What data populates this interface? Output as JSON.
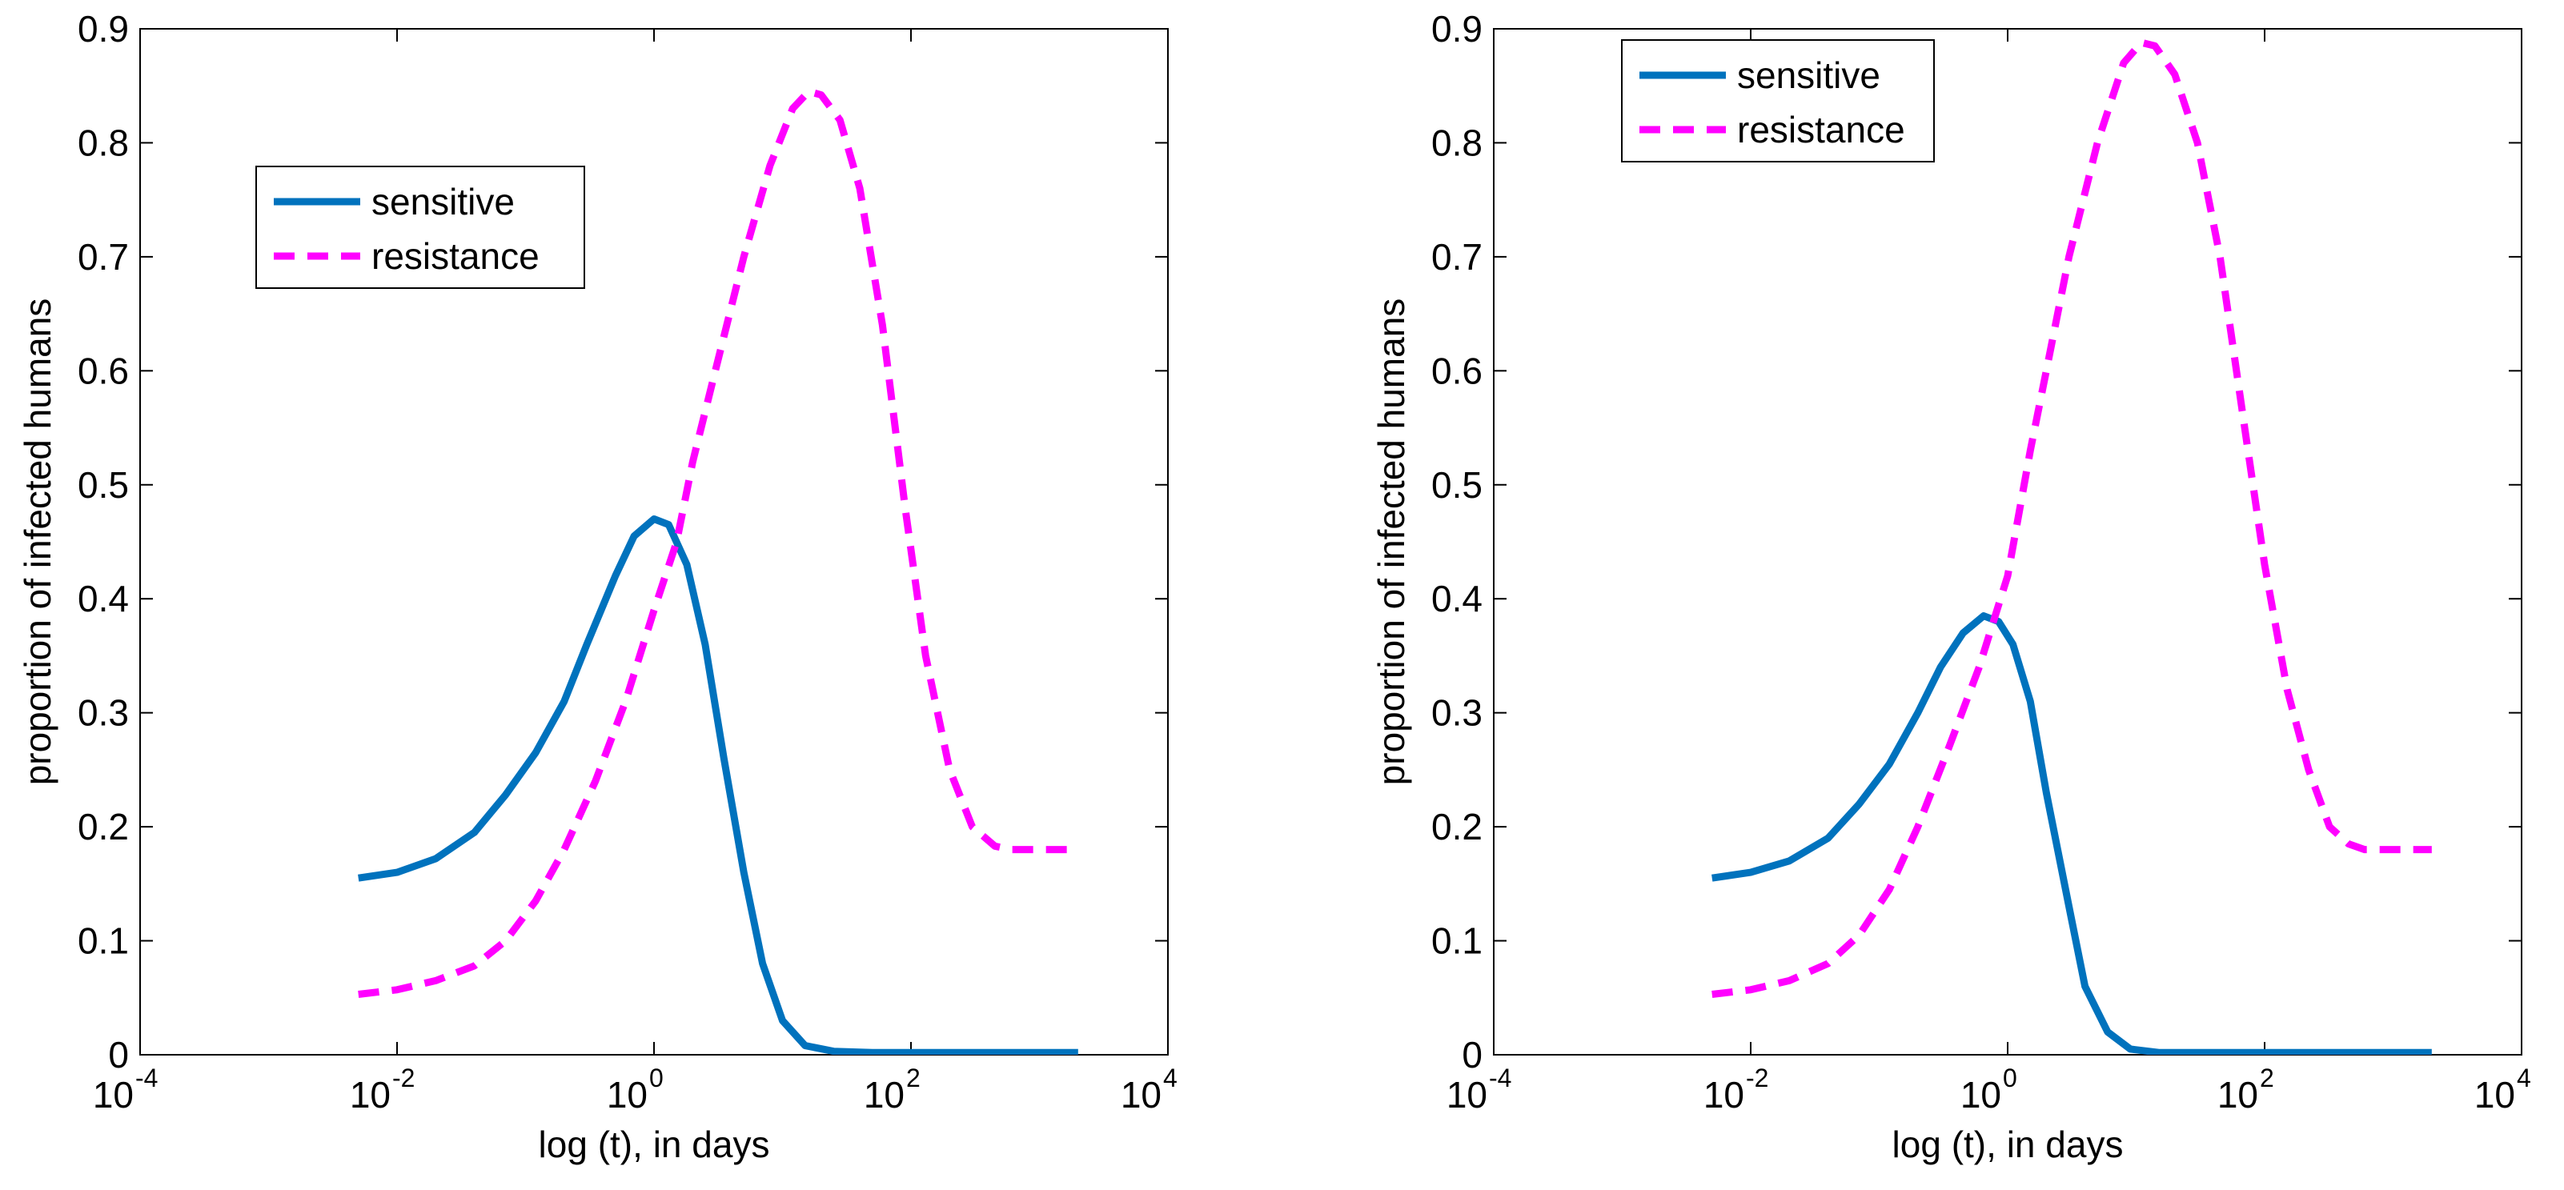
{
  "chart_data": [
    {
      "type": "line",
      "x_scale": "log",
      "xlabel": "log (t), in days",
      "ylabel": "proportion of infected humans",
      "xlim": [
        0.0001,
        10000
      ],
      "ylim": [
        0,
        0.9
      ],
      "x_ticks": [
        {
          "base": "10",
          "exp": "-4"
        },
        {
          "base": "10",
          "exp": "-2"
        },
        {
          "base": "10",
          "exp": "0"
        },
        {
          "base": "10",
          "exp": "2"
        },
        {
          "base": "10",
          "exp": "4"
        }
      ],
      "y_ticks": [
        "0",
        "0.1",
        "0.2",
        "0.3",
        "0.4",
        "0.5",
        "0.6",
        "0.7",
        "0.8",
        "0.9"
      ],
      "legend_position": "upper-left",
      "series": [
        {
          "name": "sensitive",
          "color": "#0072BD",
          "style": "solid",
          "points": [
            [
              0.005,
              0.155
            ],
            [
              0.01,
              0.16
            ],
            [
              0.02,
              0.172
            ],
            [
              0.04,
              0.195
            ],
            [
              0.07,
              0.228
            ],
            [
              0.12,
              0.265
            ],
            [
              0.2,
              0.31
            ],
            [
              0.3,
              0.36
            ],
            [
              0.5,
              0.42
            ],
            [
              0.7,
              0.455
            ],
            [
              1.0,
              0.47
            ],
            [
              1.3,
              0.465
            ],
            [
              1.8,
              0.43
            ],
            [
              2.5,
              0.36
            ],
            [
              3.5,
              0.26
            ],
            [
              5,
              0.16
            ],
            [
              7,
              0.08
            ],
            [
              10,
              0.03
            ],
            [
              15,
              0.008
            ],
            [
              25,
              0.003
            ],
            [
              50,
              0.002
            ],
            [
              100,
              0.002
            ],
            [
              2000,
              0.002
            ]
          ]
        },
        {
          "name": "resistance",
          "color": "#FF00FF",
          "style": "dashed",
          "points": [
            [
              0.005,
              0.053
            ],
            [
              0.01,
              0.057
            ],
            [
              0.02,
              0.065
            ],
            [
              0.04,
              0.078
            ],
            [
              0.07,
              0.1
            ],
            [
              0.12,
              0.135
            ],
            [
              0.2,
              0.18
            ],
            [
              0.35,
              0.24
            ],
            [
              0.6,
              0.31
            ],
            [
              1,
              0.39
            ],
            [
              1.5,
              0.45
            ],
            [
              2,
              0.52
            ],
            [
              3,
              0.6
            ],
            [
              5,
              0.7
            ],
            [
              8,
              0.78
            ],
            [
              12,
              0.83
            ],
            [
              16,
              0.845
            ],
            [
              20,
              0.842
            ],
            [
              28,
              0.82
            ],
            [
              40,
              0.76
            ],
            [
              60,
              0.64
            ],
            [
              90,
              0.48
            ],
            [
              130,
              0.35
            ],
            [
              200,
              0.25
            ],
            [
              300,
              0.2
            ],
            [
              450,
              0.183
            ],
            [
              600,
              0.18
            ],
            [
              2000,
              0.18
            ]
          ]
        }
      ]
    },
    {
      "type": "line",
      "x_scale": "log",
      "xlabel": "log (t), in days",
      "ylabel": "proportion of infected humans",
      "xlim": [
        0.0001,
        10000
      ],
      "ylim": [
        0,
        0.9
      ],
      "x_ticks": [
        {
          "base": "10",
          "exp": "-4"
        },
        {
          "base": "10",
          "exp": "-2"
        },
        {
          "base": "10",
          "exp": "0"
        },
        {
          "base": "10",
          "exp": "2"
        },
        {
          "base": "10",
          "exp": "4"
        }
      ],
      "y_ticks": [
        "0",
        "0.1",
        "0.2",
        "0.3",
        "0.4",
        "0.5",
        "0.6",
        "0.7",
        "0.8",
        "0.9"
      ],
      "legend_position": "top-left",
      "series": [
        {
          "name": "sensitive",
          "color": "#0072BD",
          "style": "solid",
          "points": [
            [
              0.005,
              0.155
            ],
            [
              0.01,
              0.16
            ],
            [
              0.02,
              0.17
            ],
            [
              0.04,
              0.19
            ],
            [
              0.07,
              0.22
            ],
            [
              0.12,
              0.255
            ],
            [
              0.2,
              0.3
            ],
            [
              0.3,
              0.34
            ],
            [
              0.45,
              0.37
            ],
            [
              0.65,
              0.385
            ],
            [
              0.85,
              0.38
            ],
            [
              1.1,
              0.36
            ],
            [
              1.5,
              0.31
            ],
            [
              2,
              0.23
            ],
            [
              3,
              0.13
            ],
            [
              4,
              0.06
            ],
            [
              6,
              0.02
            ],
            [
              9,
              0.005
            ],
            [
              15,
              0.002
            ],
            [
              30,
              0.002
            ],
            [
              2000,
              0.002
            ]
          ]
        },
        {
          "name": "resistance",
          "color": "#FF00FF",
          "style": "dashed",
          "points": [
            [
              0.005,
              0.053
            ],
            [
              0.01,
              0.057
            ],
            [
              0.02,
              0.065
            ],
            [
              0.04,
              0.08
            ],
            [
              0.07,
              0.105
            ],
            [
              0.12,
              0.145
            ],
            [
              0.2,
              0.2
            ],
            [
              0.35,
              0.27
            ],
            [
              0.6,
              0.34
            ],
            [
              1,
              0.42
            ],
            [
              1.5,
              0.53
            ],
            [
              2,
              0.6
            ],
            [
              3,
              0.7
            ],
            [
              5,
              0.8
            ],
            [
              8,
              0.87
            ],
            [
              11,
              0.888
            ],
            [
              14,
              0.885
            ],
            [
              20,
              0.86
            ],
            [
              30,
              0.8
            ],
            [
              45,
              0.7
            ],
            [
              70,
              0.55
            ],
            [
              100,
              0.43
            ],
            [
              150,
              0.32
            ],
            [
              220,
              0.25
            ],
            [
              320,
              0.2
            ],
            [
              450,
              0.185
            ],
            [
              600,
              0.18
            ],
            [
              2000,
              0.18
            ]
          ]
        }
      ]
    }
  ]
}
